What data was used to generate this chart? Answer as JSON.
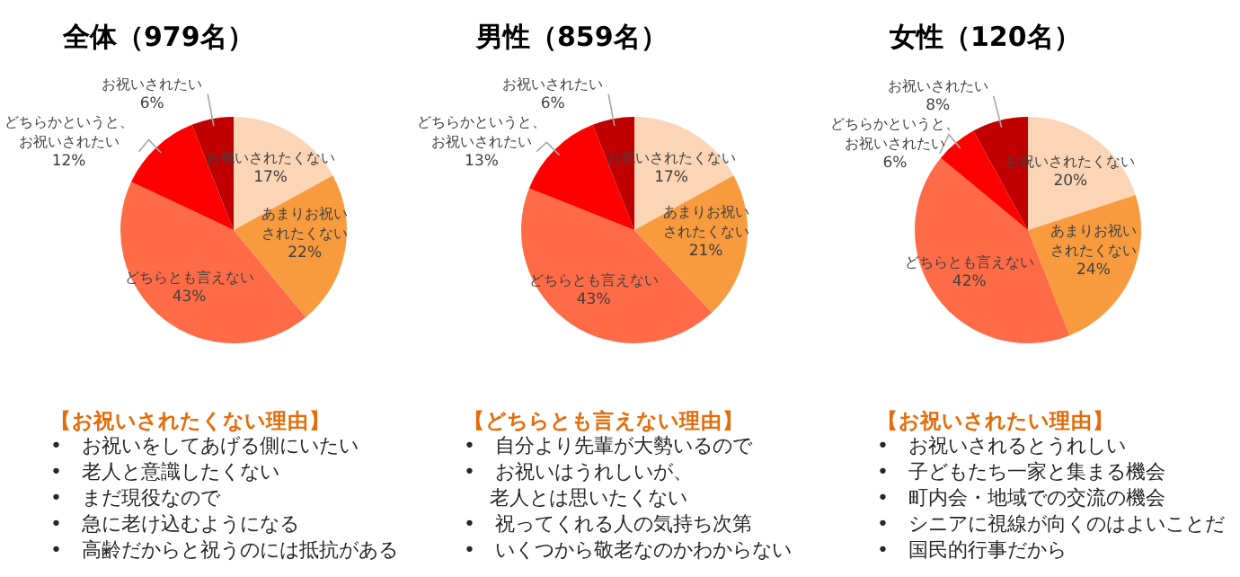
{
  "chart_data": [
    {
      "type": "pie",
      "title": "全体（979名）",
      "categories": [
        "お祝いされたくない",
        "あまりお祝いされたくない",
        "どちらとも言えない",
        "どちらかというと、お祝いされたい",
        "お祝いされたい"
      ],
      "values": [
        17,
        22,
        43,
        12,
        6
      ],
      "value_labels": [
        "17%",
        "22%",
        "43%",
        "12%",
        "6%"
      ],
      "colors": [
        "#fbd5b5",
        "#f79b3e",
        "#ff6b47",
        "#ff0000",
        "#c00000"
      ],
      "legend": false,
      "annotations": [
        "【お祝いされたくない理由】",
        "•　お祝いをしてあげる側にいたい",
        "•　老人と意識したくない",
        "•　まだ現役なので",
        "•　急に老け込むようになる",
        "•　高齢だからと祝うのには抵抗がある"
      ]
    },
    {
      "type": "pie",
      "title": "男性（859名）",
      "categories": [
        "お祝いされたくない",
        "あまりお祝いされたくない",
        "どちらとも言えない",
        "どちらかというと、お祝いされたい",
        "お祝いされたい"
      ],
      "values": [
        17,
        21,
        43,
        13,
        6
      ],
      "value_labels": [
        "17%",
        "21%",
        "43%",
        "13%",
        "6%"
      ],
      "colors": [
        "#fbd5b5",
        "#f79b3e",
        "#ff6b47",
        "#ff0000",
        "#c00000"
      ],
      "legend": false,
      "annotations": [
        "【どちらとも言えない理由】",
        "•　自分より先輩が大勢いるので",
        "•　お祝いはうれしいが、",
        "　 老人とは思いたくない",
        "•　祝ってくれる人の気持ち次第",
        "•　いくつから敬老なのかわからない"
      ]
    },
    {
      "type": "pie",
      "title": "女性（120名）",
      "categories": [
        "お祝いされたくない",
        "あまりお祝いされたくない",
        "どちらとも言えない",
        "どちらかというと、お祝いされたい",
        "お祝いされたい"
      ],
      "values": [
        20,
        24,
        42,
        6,
        8
      ],
      "value_labels": [
        "20%",
        "24%",
        "42%",
        "6%",
        "8%"
      ],
      "colors": [
        "#fbd5b5",
        "#f79b3e",
        "#ff6b47",
        "#ff0000",
        "#c00000"
      ],
      "legend": false,
      "annotations": [
        "【お祝いされたい理由】",
        "•　お祝いされるとうれしい",
        "•　子どもたち一家と集まる機会",
        "•　町内会・地域での交流の機会",
        "•　シニアに視線が向くのはよいことだ",
        "•　国民的行事だから"
      ]
    }
  ]
}
